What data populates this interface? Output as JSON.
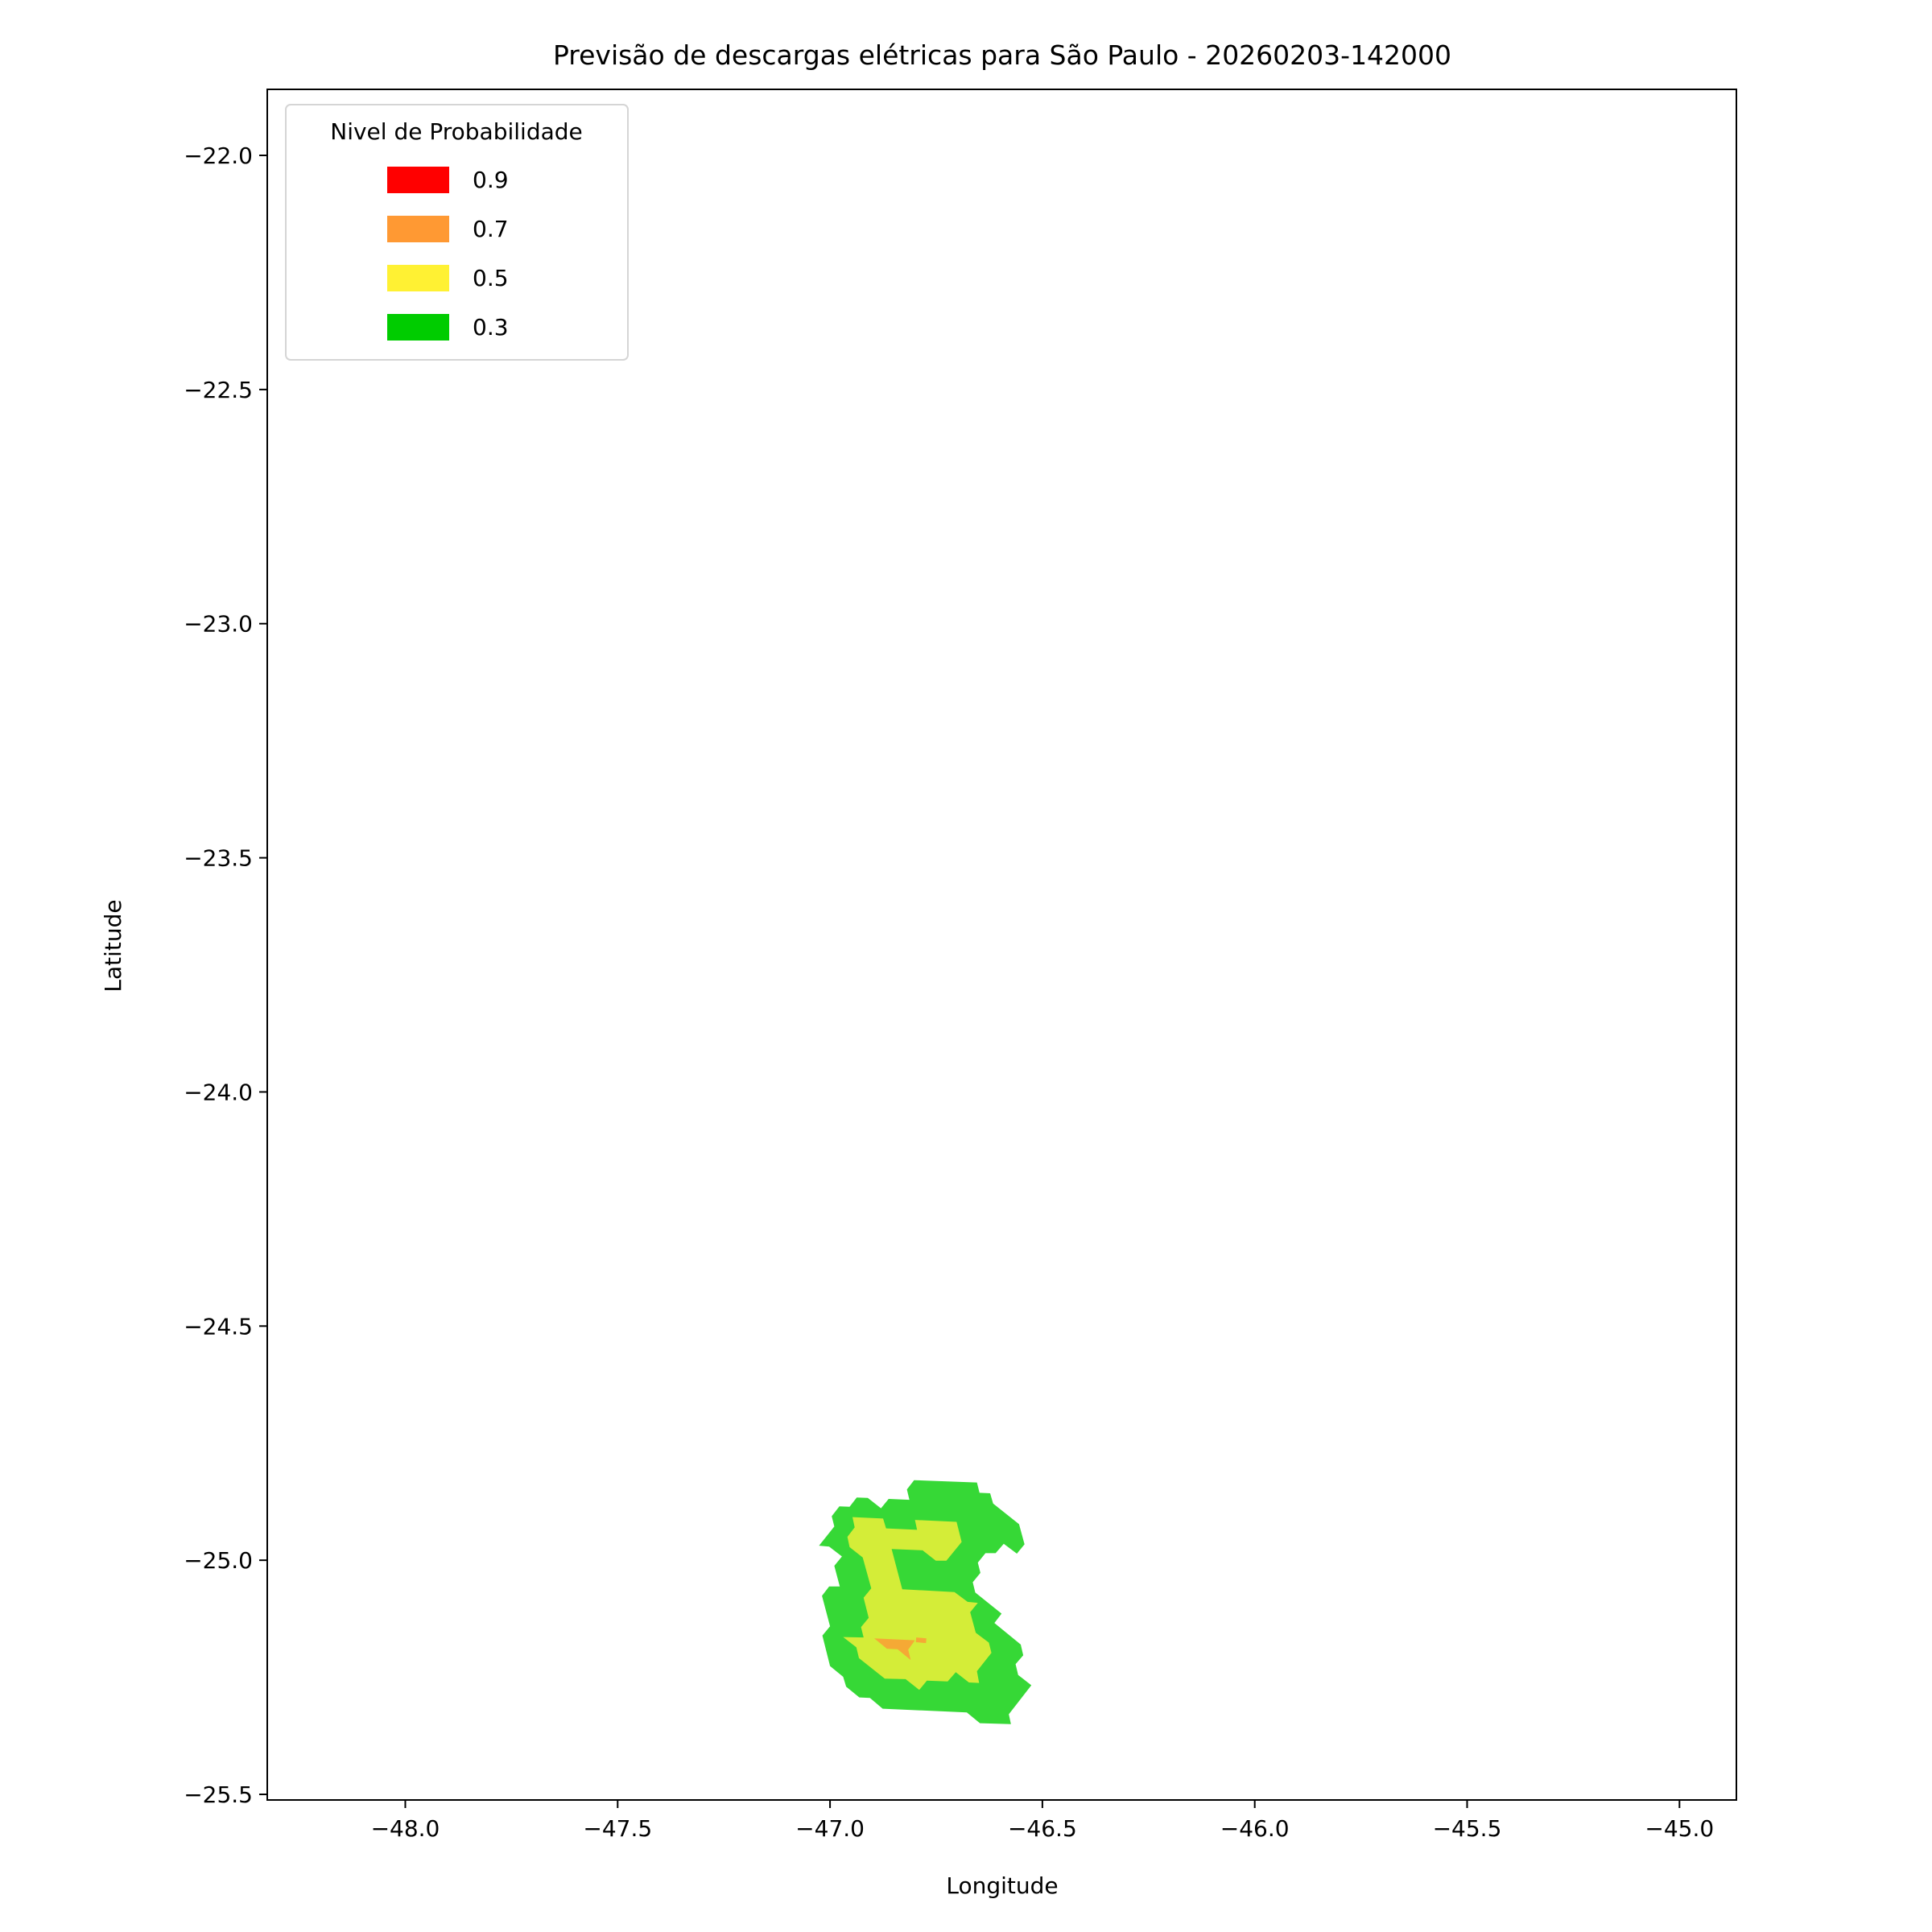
{
  "chart_data": {
    "type": "contour-map",
    "title": "Previsão de descargas elétricas para São Paulo - 20260203-142000",
    "xlabel": "Longitude",
    "ylabel": "Latitude",
    "xlim": [
      -48.325,
      -44.866
    ],
    "ylim": [
      -25.512,
      -21.859
    ],
    "xticks": [
      -48.0,
      -47.5,
      -47.0,
      -46.5,
      -46.0,
      -45.5,
      -45.0
    ],
    "xtick_labels": [
      "−48.0",
      "−47.5",
      "−47.0",
      "−46.5",
      "−46.0",
      "−45.5",
      "−45.0"
    ],
    "yticks": [
      -22.0,
      -22.5,
      -23.0,
      -23.5,
      -24.0,
      -24.5,
      -25.0,
      -25.5
    ],
    "ytick_labels": [
      "−22.0",
      "−22.5",
      "−23.0",
      "−23.5",
      "−24.0",
      "−24.5",
      "−25.0",
      "−25.5"
    ],
    "grid": false,
    "legend": {
      "title": "Nivel de Probabilidade",
      "placement": "upper-left",
      "entries": [
        {
          "label": "0.9",
          "color": "#ff0000"
        },
        {
          "label": "0.7",
          "color": "#ff9933"
        },
        {
          "label": "0.5",
          "color": "#fff133"
        },
        {
          "label": "0.3",
          "color": "#00cc00"
        }
      ]
    },
    "regions": [
      {
        "level": 0.3,
        "color": "#36d836",
        "polygons": [
          [
            [
              -46.802,
              -24.829
            ],
            [
              -46.654,
              -24.834
            ],
            [
              -46.648,
              -24.856
            ],
            [
              -46.623,
              -24.857
            ],
            [
              -46.616,
              -24.879
            ],
            [
              -46.555,
              -24.923
            ],
            [
              -46.542,
              -24.966
            ],
            [
              -46.56,
              -24.986
            ],
            [
              -46.591,
              -24.965
            ],
            [
              -46.61,
              -24.985
            ],
            [
              -46.634,
              -24.985
            ],
            [
              -46.652,
              -25.005
            ],
            [
              -46.646,
              -25.027
            ],
            [
              -46.664,
              -25.047
            ],
            [
              -46.658,
              -25.069
            ],
            [
              -46.596,
              -25.114
            ],
            [
              -46.613,
              -25.134
            ],
            [
              -46.551,
              -25.18
            ],
            [
              -46.545,
              -25.203
            ],
            [
              -46.563,
              -25.222
            ],
            [
              -46.557,
              -25.245
            ],
            [
              -46.526,
              -25.267
            ],
            [
              -46.579,
              -25.329
            ],
            [
              -46.574,
              -25.35
            ],
            [
              -46.647,
              -25.348
            ],
            [
              -46.678,
              -25.325
            ],
            [
              -46.876,
              -25.317
            ],
            [
              -46.906,
              -25.294
            ],
            [
              -46.931,
              -25.293
            ],
            [
              -46.962,
              -25.27
            ],
            [
              -46.969,
              -25.249
            ],
            [
              -47.0,
              -25.226
            ],
            [
              -47.018,
              -25.161
            ],
            [
              -47.0,
              -25.141
            ],
            [
              -47.019,
              -25.076
            ],
            [
              -47.002,
              -25.056
            ],
            [
              -46.977,
              -25.056
            ],
            [
              -46.99,
              -25.012
            ],
            [
              -46.972,
              -24.992
            ],
            [
              -47.002,
              -24.971
            ],
            [
              -47.026,
              -24.969
            ],
            [
              -46.99,
              -24.928
            ],
            [
              -46.996,
              -24.906
            ],
            [
              -46.978,
              -24.885
            ],
            [
              -46.954,
              -24.886
            ],
            [
              -46.937,
              -24.866
            ],
            [
              -46.911,
              -24.867
            ],
            [
              -46.88,
              -24.889
            ],
            [
              -46.862,
              -24.869
            ],
            [
              -46.813,
              -24.871
            ],
            [
              -46.819,
              -24.849
            ]
          ]
        ]
      },
      {
        "level": 0.5,
        "color": "#d4ed38",
        "polygons": [
          [
            [
              -46.947,
              -24.908
            ],
            [
              -46.875,
              -24.911
            ],
            [
              -46.868,
              -24.932
            ],
            [
              -46.795,
              -24.935
            ],
            [
              -46.8,
              -24.914
            ],
            [
              -46.702,
              -24.918
            ],
            [
              -46.69,
              -24.961
            ],
            [
              -46.726,
              -25.001
            ],
            [
              -46.751,
              -25.001
            ],
            [
              -46.782,
              -24.979
            ],
            [
              -46.855,
              -24.976
            ],
            [
              -46.83,
              -25.062
            ],
            [
              -46.707,
              -25.068
            ],
            [
              -46.676,
              -25.089
            ],
            [
              -46.652,
              -25.091
            ],
            [
              -46.67,
              -25.111
            ],
            [
              -46.657,
              -25.155
            ],
            [
              -46.626,
              -25.176
            ],
            [
              -46.62,
              -25.198
            ],
            [
              -46.654,
              -25.237
            ],
            [
              -46.649,
              -25.262
            ],
            [
              -46.673,
              -25.261
            ],
            [
              -46.704,
              -25.239
            ],
            [
              -46.723,
              -25.259
            ],
            [
              -46.772,
              -25.257
            ],
            [
              -46.79,
              -25.277
            ],
            [
              -46.822,
              -25.254
            ],
            [
              -46.871,
              -25.253
            ],
            [
              -46.932,
              -25.209
            ],
            [
              -46.938,
              -25.186
            ],
            [
              -46.969,
              -25.164
            ],
            [
              -46.921,
              -25.165
            ],
            [
              -46.927,
              -25.143
            ],
            [
              -46.909,
              -25.123
            ],
            [
              -46.921,
              -25.08
            ],
            [
              -46.903,
              -25.06
            ],
            [
              -46.923,
              -24.994
            ],
            [
              -46.954,
              -24.972
            ],
            [
              -46.959,
              -24.95
            ],
            [
              -46.942,
              -24.93
            ]
          ]
        ]
      },
      {
        "level": 0.7,
        "color": "#f5a935",
        "polygons": [
          [
            [
              -46.896,
              -25.167
            ],
            [
              -46.8,
              -25.171
            ],
            [
              -46.816,
              -25.191
            ],
            [
              -46.81,
              -25.213
            ],
            [
              -46.841,
              -25.19
            ],
            [
              -46.866,
              -25.189
            ]
          ],
          [
            [
              -46.797,
              -25.165
            ],
            [
              -46.773,
              -25.167
            ],
            [
              -46.774,
              -25.177
            ],
            [
              -46.798,
              -25.175
            ]
          ]
        ]
      }
    ]
  }
}
